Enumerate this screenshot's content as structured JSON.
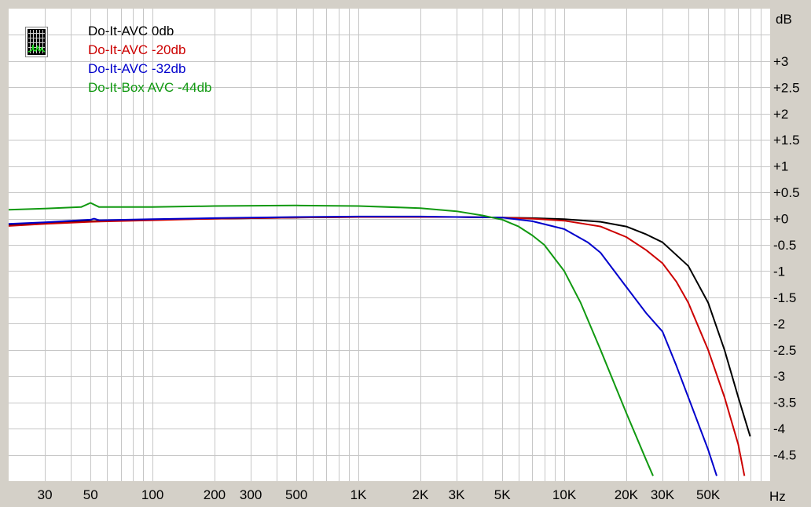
{
  "chart_data": {
    "type": "line",
    "xlabel": "Hz",
    "ylabel": "dB",
    "x_scale": "log",
    "xlim": [
      20,
      100000
    ],
    "ylim": [
      -5,
      4
    ],
    "x_tick_labels": [
      {
        "label": "30",
        "value": 30
      },
      {
        "label": "50",
        "value": 50
      },
      {
        "label": "100",
        "value": 100
      },
      {
        "label": "200",
        "value": 200
      },
      {
        "label": "300",
        "value": 300
      },
      {
        "label": "500",
        "value": 500
      },
      {
        "label": "1K",
        "value": 1000
      },
      {
        "label": "2K",
        "value": 2000
      },
      {
        "label": "3K",
        "value": 3000
      },
      {
        "label": "5K",
        "value": 5000
      },
      {
        "label": "10K",
        "value": 10000
      },
      {
        "label": "20K",
        "value": 20000
      },
      {
        "label": "30K",
        "value": 30000
      },
      {
        "label": "50K",
        "value": 50000
      }
    ],
    "y_tick_labels": [
      {
        "label": "+3",
        "value": 3
      },
      {
        "label": "+2.5",
        "value": 2.5
      },
      {
        "label": "+2",
        "value": 2
      },
      {
        "label": "+1.5",
        "value": 1.5
      },
      {
        "label": "+1",
        "value": 1
      },
      {
        "label": "+0.5",
        "value": 0.5
      },
      {
        "label": "+0",
        "value": 0
      },
      {
        "label": "-0.5",
        "value": -0.5
      },
      {
        "label": "-1",
        "value": -1
      },
      {
        "label": "-1.5",
        "value": -1.5
      },
      {
        "label": "-2",
        "value": -2
      },
      {
        "label": "-2.5",
        "value": -2.5
      },
      {
        "label": "-3",
        "value": -3
      },
      {
        "label": "-3.5",
        "value": -3.5
      },
      {
        "label": "-4",
        "value": -4
      },
      {
        "label": "-4.5",
        "value": -4.5
      }
    ],
    "grid": true,
    "legend_position": "top-left",
    "series": [
      {
        "name": "Do-It-AVC 0db",
        "color": "#000000",
        "points": [
          [
            20,
            -0.12
          ],
          [
            30,
            -0.08
          ],
          [
            50,
            -0.05
          ],
          [
            100,
            -0.02
          ],
          [
            200,
            0.0
          ],
          [
            500,
            0.02
          ],
          [
            1000,
            0.03
          ],
          [
            2000,
            0.03
          ],
          [
            3000,
            0.03
          ],
          [
            5000,
            0.02
          ],
          [
            7000,
            0.01
          ],
          [
            10000,
            -0.01
          ],
          [
            15000,
            -0.06
          ],
          [
            20000,
            -0.15
          ],
          [
            25000,
            -0.3
          ],
          [
            30000,
            -0.45
          ],
          [
            40000,
            -0.9
          ],
          [
            50000,
            -1.6
          ],
          [
            60000,
            -2.5
          ],
          [
            70000,
            -3.4
          ],
          [
            80000,
            -4.15
          ]
        ]
      },
      {
        "name": "Do-It-AVC -20db",
        "color": "#cc0000",
        "points": [
          [
            20,
            -0.14
          ],
          [
            30,
            -0.1
          ],
          [
            50,
            -0.06
          ],
          [
            100,
            -0.03
          ],
          [
            200,
            0.0
          ],
          [
            500,
            0.02
          ],
          [
            1000,
            0.03
          ],
          [
            2000,
            0.03
          ],
          [
            3000,
            0.03
          ],
          [
            5000,
            0.02
          ],
          [
            7000,
            0.0
          ],
          [
            10000,
            -0.04
          ],
          [
            15000,
            -0.15
          ],
          [
            20000,
            -0.35
          ],
          [
            25000,
            -0.6
          ],
          [
            30000,
            -0.85
          ],
          [
            35000,
            -1.2
          ],
          [
            40000,
            -1.6
          ],
          [
            50000,
            -2.5
          ],
          [
            60000,
            -3.4
          ],
          [
            70000,
            -4.3
          ],
          [
            75000,
            -4.9
          ]
        ]
      },
      {
        "name": "Do-It-AVC -32db",
        "color": "#0000cc",
        "points": [
          [
            20,
            -0.1
          ],
          [
            30,
            -0.07
          ],
          [
            50,
            -0.02
          ],
          [
            52,
            -0.0
          ],
          [
            55,
            -0.03
          ],
          [
            100,
            -0.01
          ],
          [
            200,
            0.01
          ],
          [
            500,
            0.03
          ],
          [
            1000,
            0.04
          ],
          [
            2000,
            0.04
          ],
          [
            3000,
            0.03
          ],
          [
            5000,
            0.02
          ],
          [
            7000,
            -0.05
          ],
          [
            10000,
            -0.2
          ],
          [
            13000,
            -0.45
          ],
          [
            15000,
            -0.65
          ],
          [
            20000,
            -1.3
          ],
          [
            25000,
            -1.8
          ],
          [
            30000,
            -2.15
          ],
          [
            35000,
            -2.8
          ],
          [
            40000,
            -3.4
          ],
          [
            50000,
            -4.4
          ],
          [
            55000,
            -4.9
          ]
        ]
      },
      {
        "name": "Do-It-Box AVC -44db",
        "color": "#119911",
        "points": [
          [
            20,
            0.17
          ],
          [
            30,
            0.19
          ],
          [
            45,
            0.22
          ],
          [
            50,
            0.3
          ],
          [
            55,
            0.22
          ],
          [
            100,
            0.22
          ],
          [
            200,
            0.24
          ],
          [
            500,
            0.25
          ],
          [
            1000,
            0.24
          ],
          [
            2000,
            0.2
          ],
          [
            3000,
            0.14
          ],
          [
            4000,
            0.06
          ],
          [
            5000,
            -0.02
          ],
          [
            6000,
            -0.15
          ],
          [
            7000,
            -0.32
          ],
          [
            8000,
            -0.5
          ],
          [
            10000,
            -1.0
          ],
          [
            12000,
            -1.6
          ],
          [
            15000,
            -2.5
          ],
          [
            20000,
            -3.7
          ],
          [
            25000,
            -4.6
          ],
          [
            27000,
            -4.9
          ]
        ]
      }
    ]
  }
}
